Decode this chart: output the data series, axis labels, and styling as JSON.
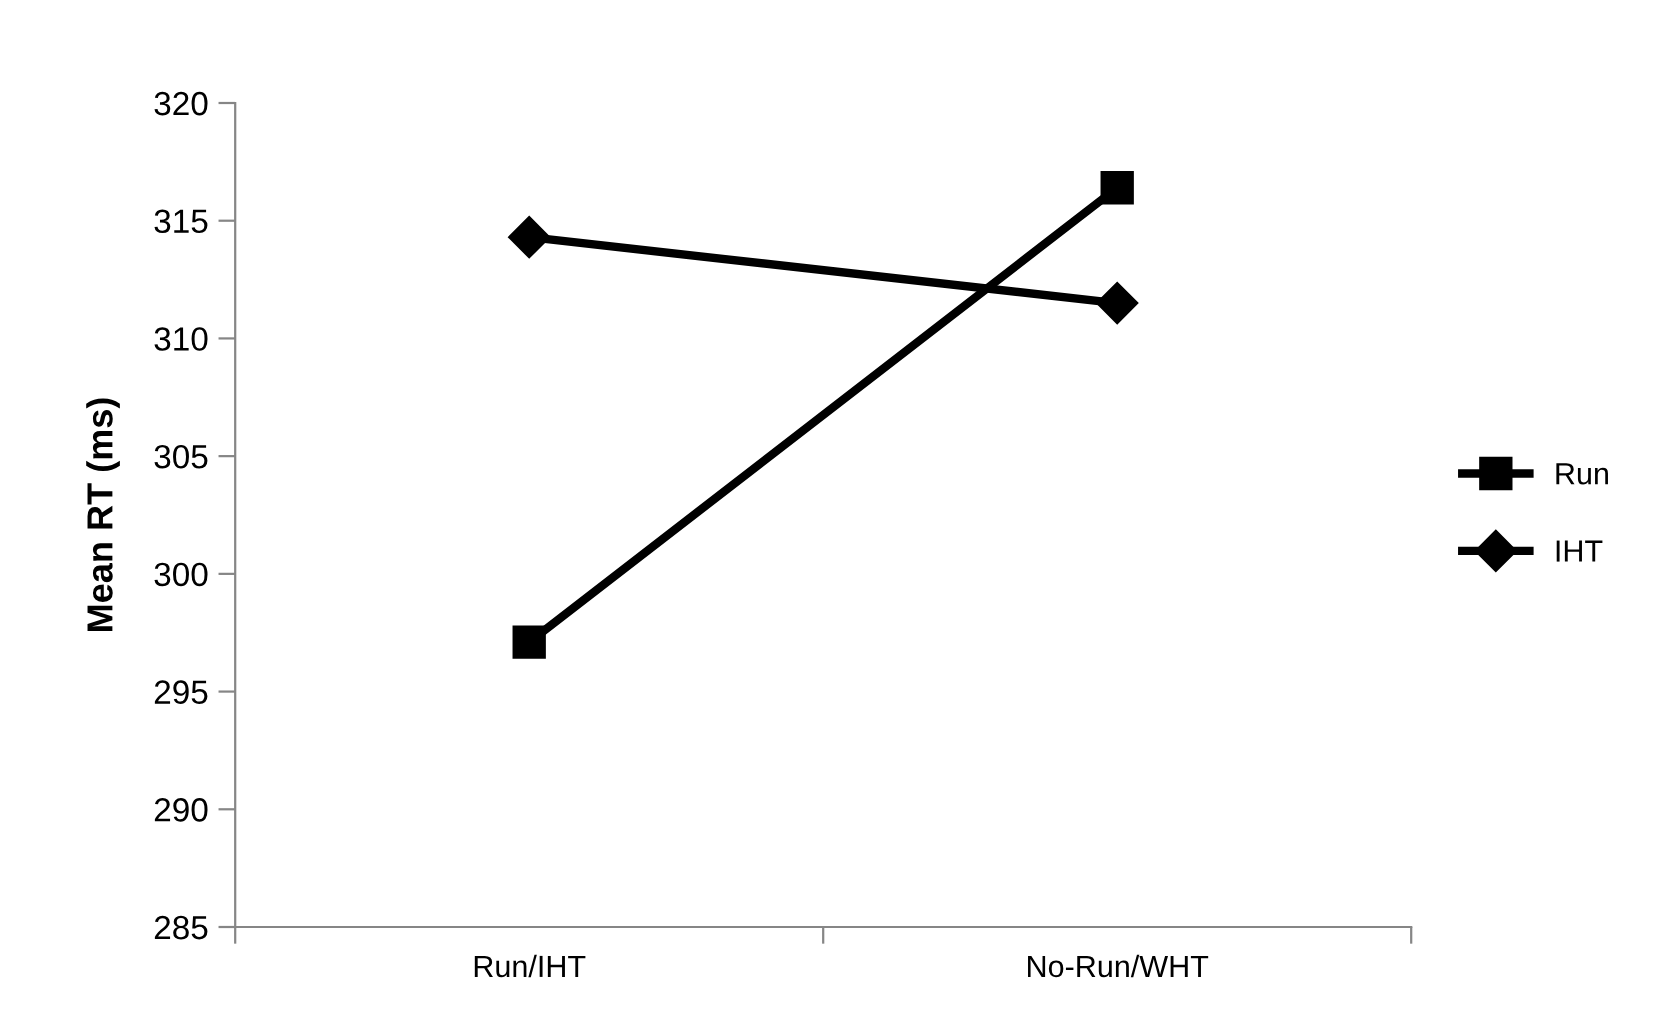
{
  "chart_data": {
    "type": "line",
    "ylabel": "Mean RT (ms)",
    "categories": [
      "Run/IHT",
      "No-Run/WHT"
    ],
    "series": [
      {
        "name": "Run",
        "color": "#000000",
        "values": [
          297.1,
          316.4
        ],
        "marker": "square"
      },
      {
        "name": "IHT",
        "color": "#000000",
        "values": [
          314.3,
          311.5
        ],
        "marker": "diamond"
      }
    ],
    "ylim": [
      285,
      320
    ],
    "yticks": [
      285,
      290,
      295,
      300,
      305,
      310,
      315,
      320
    ],
    "grid": false,
    "legend": "right",
    "line_style": "solid"
  }
}
